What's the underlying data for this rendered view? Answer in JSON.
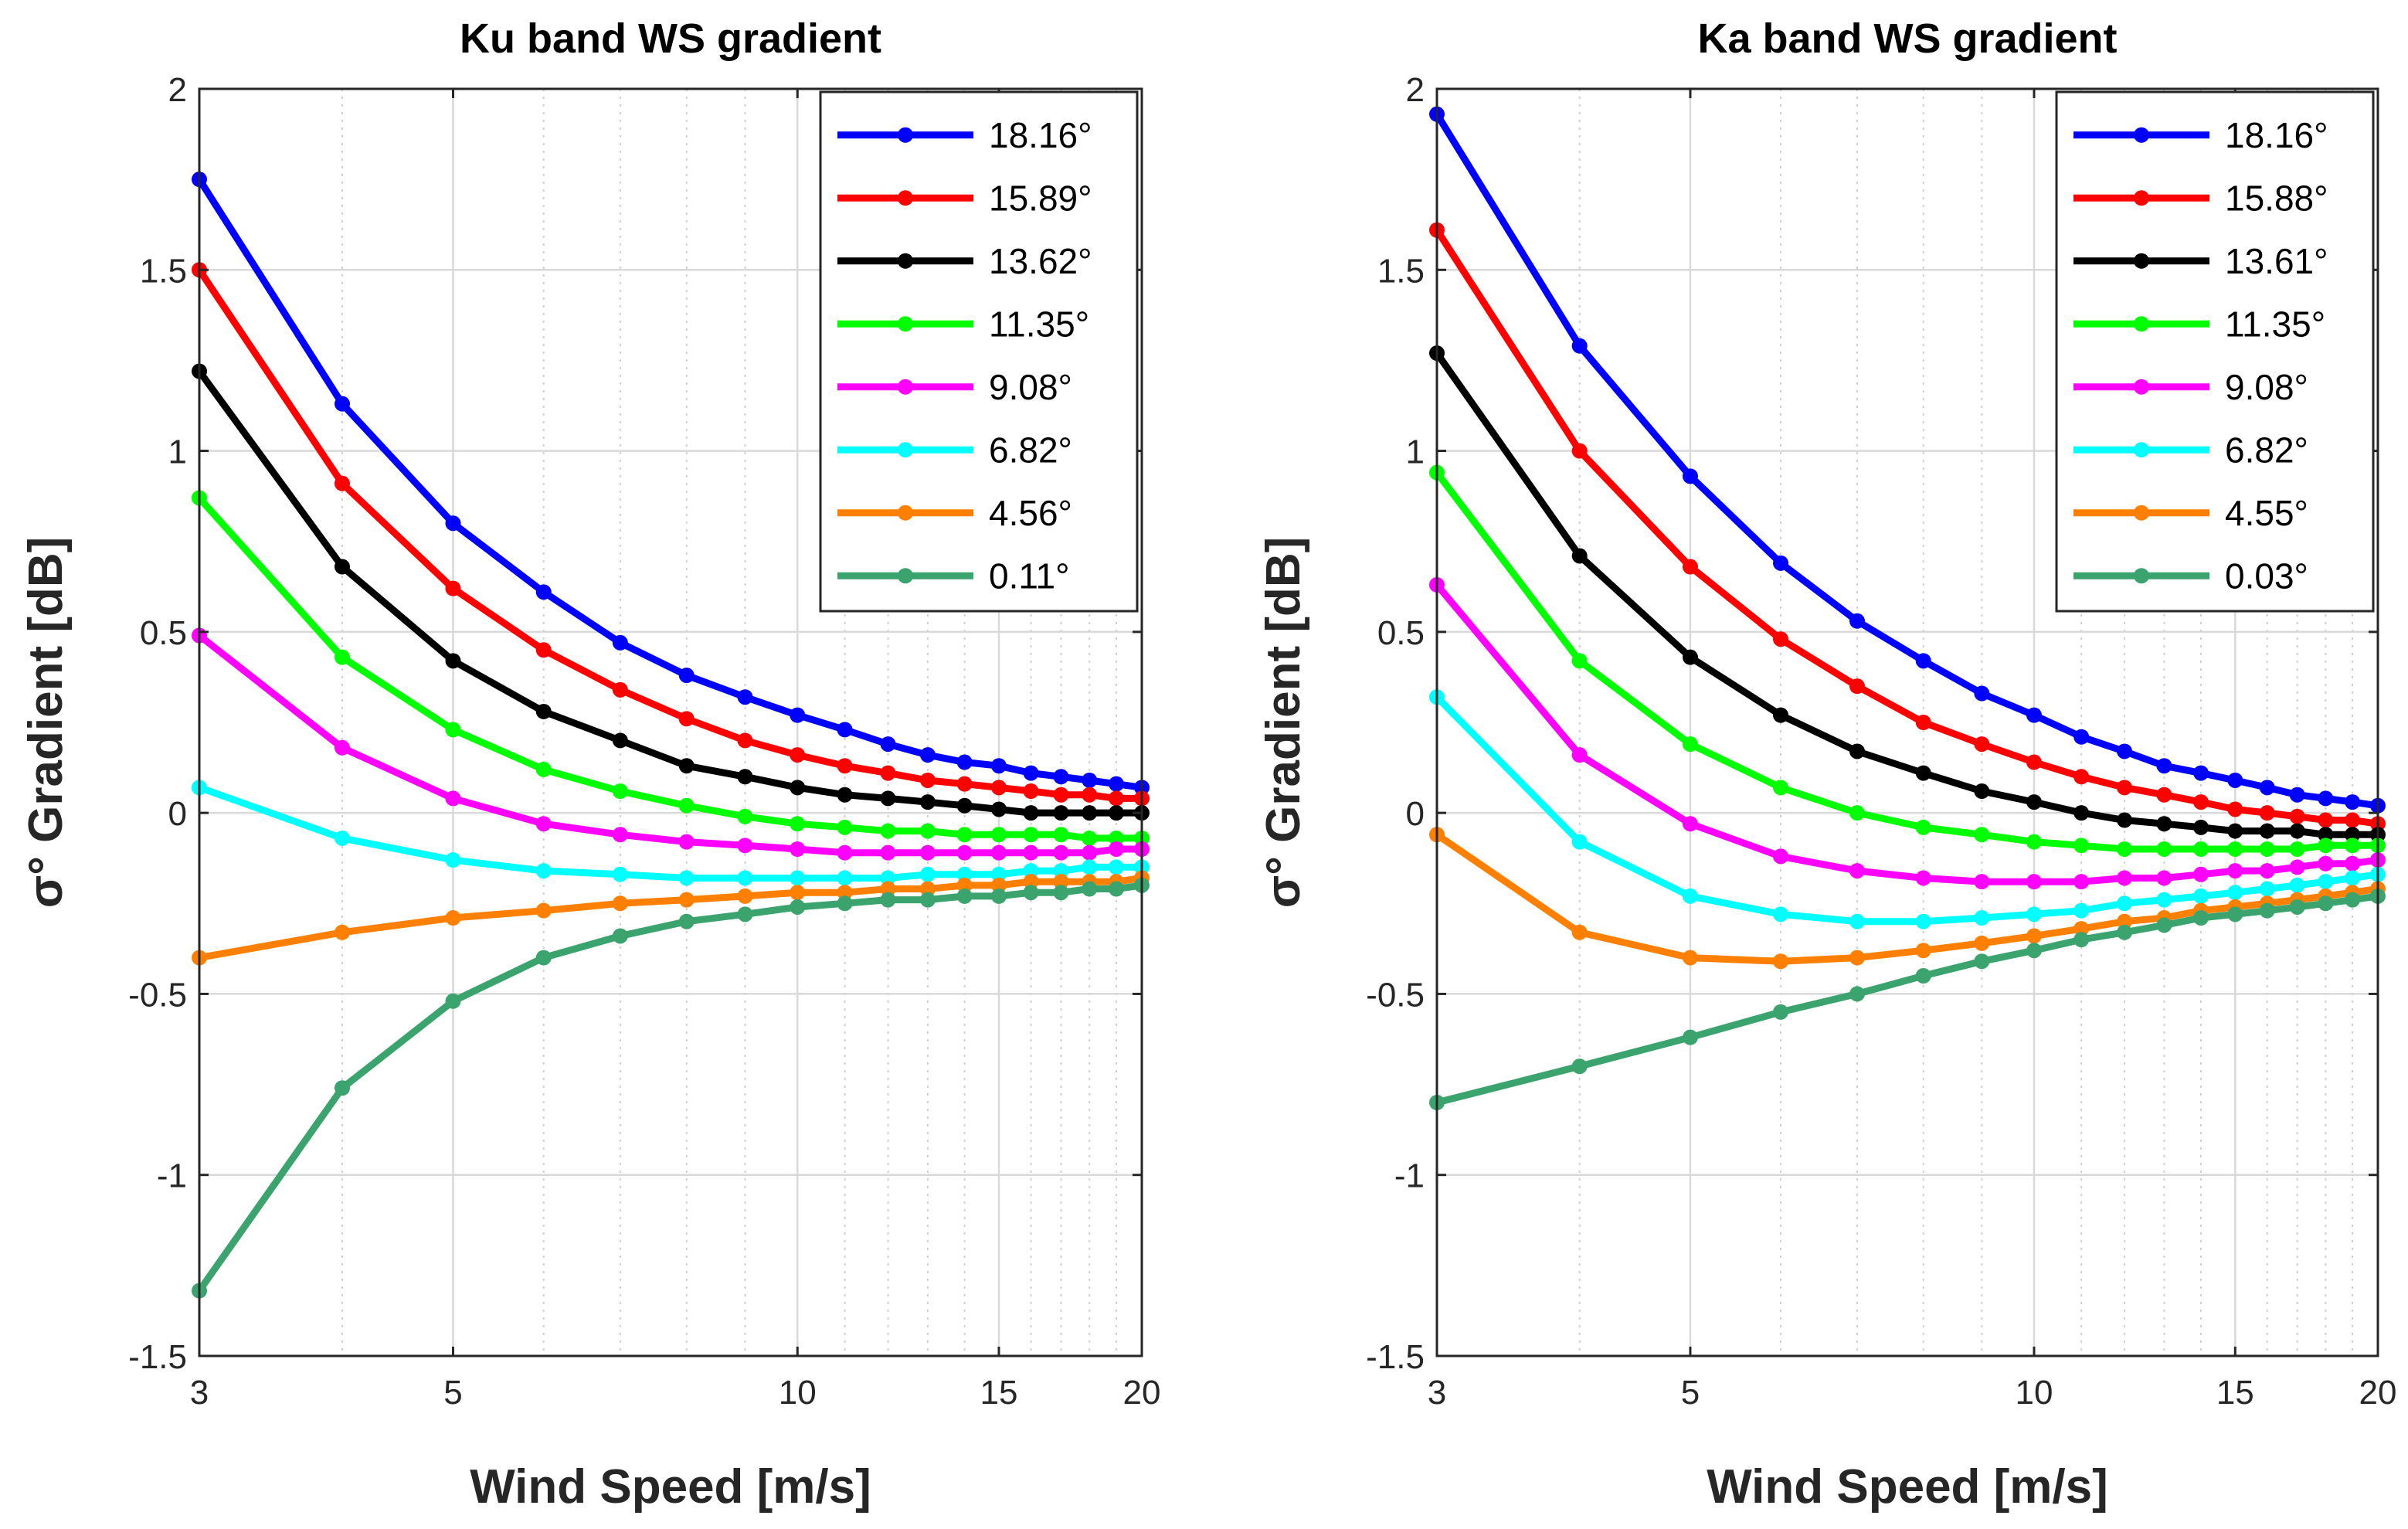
{
  "chart_data": [
    {
      "type": "line",
      "title": "Ku band WS gradient",
      "xlabel": "Wind Speed [m/s]",
      "ylabel": "σ° Gradient [dB]",
      "xscale": "log",
      "xlim": [
        3,
        20
      ],
      "ylim": [
        -1.5,
        2
      ],
      "xticks": [
        3,
        5,
        10,
        15,
        20
      ],
      "xtick_labels": [
        "3",
        "5",
        "10",
        "15",
        "20"
      ],
      "yticks": [
        -1.5,
        -1,
        -0.5,
        0,
        0.5,
        1,
        1.5,
        2
      ],
      "ytick_labels": [
        "-1.5",
        "-1",
        "-0.5",
        "0",
        "0.5",
        "1",
        "1.5",
        "2"
      ],
      "grid": true,
      "legend_position": "top-right",
      "x": [
        3,
        4,
        5,
        6,
        7,
        8,
        9,
        10,
        11,
        12,
        13,
        14,
        15,
        16,
        17,
        18,
        19,
        20
      ],
      "series": [
        {
          "name": "18.16°",
          "color": "#0000ff",
          "values": [
            1.75,
            1.13,
            0.8,
            0.61,
            0.47,
            0.38,
            0.32,
            0.27,
            0.23,
            0.19,
            0.16,
            0.14,
            0.13,
            0.11,
            0.1,
            0.09,
            0.08,
            0.07
          ]
        },
        {
          "name": "15.89°",
          "color": "#ff0000",
          "values": [
            1.5,
            0.91,
            0.62,
            0.45,
            0.34,
            0.26,
            0.2,
            0.16,
            0.13,
            0.11,
            0.09,
            0.08,
            0.07,
            0.06,
            0.05,
            0.05,
            0.04,
            0.04
          ]
        },
        {
          "name": "13.62°",
          "color": "#000000",
          "values": [
            1.22,
            0.68,
            0.42,
            0.28,
            0.2,
            0.13,
            0.1,
            0.07,
            0.05,
            0.04,
            0.03,
            0.02,
            0.01,
            0.0,
            0.0,
            0.0,
            0.0,
            0.0
          ]
        },
        {
          "name": "11.35°",
          "color": "#00ff00",
          "values": [
            0.87,
            0.43,
            0.23,
            0.12,
            0.06,
            0.02,
            -0.01,
            -0.03,
            -0.04,
            -0.05,
            -0.05,
            -0.06,
            -0.06,
            -0.06,
            -0.06,
            -0.07,
            -0.07,
            -0.07
          ]
        },
        {
          "name": "9.08°",
          "color": "#ff00ff",
          "values": [
            0.49,
            0.18,
            0.04,
            -0.03,
            -0.06,
            -0.08,
            -0.09,
            -0.1,
            -0.11,
            -0.11,
            -0.11,
            -0.11,
            -0.11,
            -0.11,
            -0.11,
            -0.11,
            -0.1,
            -0.1
          ]
        },
        {
          "name": "6.82°",
          "color": "#00ffff",
          "values": [
            0.07,
            -0.07,
            -0.13,
            -0.16,
            -0.17,
            -0.18,
            -0.18,
            -0.18,
            -0.18,
            -0.18,
            -0.17,
            -0.17,
            -0.17,
            -0.16,
            -0.16,
            -0.15,
            -0.15,
            -0.15
          ]
        },
        {
          "name": "4.56°",
          "color": "#ff8000",
          "values": [
            -0.4,
            -0.33,
            -0.29,
            -0.27,
            -0.25,
            -0.24,
            -0.23,
            -0.22,
            -0.22,
            -0.21,
            -0.21,
            -0.2,
            -0.2,
            -0.19,
            -0.19,
            -0.19,
            -0.19,
            -0.18
          ]
        },
        {
          "name": "0.11°",
          "color": "#3aa36e",
          "values": [
            -1.32,
            -0.76,
            -0.52,
            -0.4,
            -0.34,
            -0.3,
            -0.28,
            -0.26,
            -0.25,
            -0.24,
            -0.24,
            -0.23,
            -0.23,
            -0.22,
            -0.22,
            -0.21,
            -0.21,
            -0.2
          ]
        }
      ]
    },
    {
      "type": "line",
      "title": "Ka band WS gradient",
      "xlabel": "Wind Speed [m/s]",
      "ylabel": "σ° Gradient [dB]",
      "xscale": "log",
      "xlim": [
        3,
        20
      ],
      "ylim": [
        -1.5,
        2
      ],
      "xticks": [
        3,
        5,
        10,
        15,
        20
      ],
      "xtick_labels": [
        "3",
        "5",
        "10",
        "15",
        "20"
      ],
      "yticks": [
        -1.5,
        -1,
        -0.5,
        0,
        0.5,
        1,
        1.5,
        2
      ],
      "ytick_labels": [
        "-1.5",
        "-1",
        "-0.5",
        "0",
        "0.5",
        "1",
        "1.5",
        "2"
      ],
      "grid": true,
      "legend_position": "top-right",
      "x": [
        3,
        4,
        5,
        6,
        7,
        8,
        9,
        10,
        11,
        12,
        13,
        14,
        15,
        16,
        17,
        18,
        19,
        20
      ],
      "series": [
        {
          "name": "18.16°",
          "color": "#0000ff",
          "values": [
            1.93,
            1.29,
            0.93,
            0.69,
            0.53,
            0.42,
            0.33,
            0.27,
            0.21,
            0.17,
            0.13,
            0.11,
            0.09,
            0.07,
            0.05,
            0.04,
            0.03,
            0.02
          ]
        },
        {
          "name": "15.88°",
          "color": "#ff0000",
          "values": [
            1.61,
            1.0,
            0.68,
            0.48,
            0.35,
            0.25,
            0.19,
            0.14,
            0.1,
            0.07,
            0.05,
            0.03,
            0.01,
            0.0,
            -0.01,
            -0.02,
            -0.02,
            -0.03
          ]
        },
        {
          "name": "13.61°",
          "color": "#000000",
          "values": [
            1.27,
            0.71,
            0.43,
            0.27,
            0.17,
            0.11,
            0.06,
            0.03,
            0.0,
            -0.02,
            -0.03,
            -0.04,
            -0.05,
            -0.05,
            -0.05,
            -0.06,
            -0.06,
            -0.06
          ]
        },
        {
          "name": "11.35°",
          "color": "#00ff00",
          "values": [
            0.94,
            0.42,
            0.19,
            0.07,
            0.0,
            -0.04,
            -0.06,
            -0.08,
            -0.09,
            -0.1,
            -0.1,
            -0.1,
            -0.1,
            -0.1,
            -0.1,
            -0.09,
            -0.09,
            -0.09
          ]
        },
        {
          "name": "9.08°",
          "color": "#ff00ff",
          "values": [
            0.63,
            0.16,
            -0.03,
            -0.12,
            -0.16,
            -0.18,
            -0.19,
            -0.19,
            -0.19,
            -0.18,
            -0.18,
            -0.17,
            -0.16,
            -0.16,
            -0.15,
            -0.14,
            -0.14,
            -0.13
          ]
        },
        {
          "name": "6.82°",
          "color": "#00ffff",
          "values": [
            0.32,
            -0.08,
            -0.23,
            -0.28,
            -0.3,
            -0.3,
            -0.29,
            -0.28,
            -0.27,
            -0.25,
            -0.24,
            -0.23,
            -0.22,
            -0.21,
            -0.2,
            -0.19,
            -0.18,
            -0.17
          ]
        },
        {
          "name": "4.55°",
          "color": "#ff8000",
          "values": [
            -0.06,
            -0.33,
            -0.4,
            -0.41,
            -0.4,
            -0.38,
            -0.36,
            -0.34,
            -0.32,
            -0.3,
            -0.29,
            -0.27,
            -0.26,
            -0.25,
            -0.24,
            -0.23,
            -0.22,
            -0.21
          ]
        },
        {
          "name": "0.03°",
          "color": "#3aa36e",
          "values": [
            -0.8,
            -0.7,
            -0.62,
            -0.55,
            -0.5,
            -0.45,
            -0.41,
            -0.38,
            -0.35,
            -0.33,
            -0.31,
            -0.29,
            -0.28,
            -0.27,
            -0.26,
            -0.25,
            -0.24,
            -0.23
          ]
        }
      ]
    }
  ]
}
